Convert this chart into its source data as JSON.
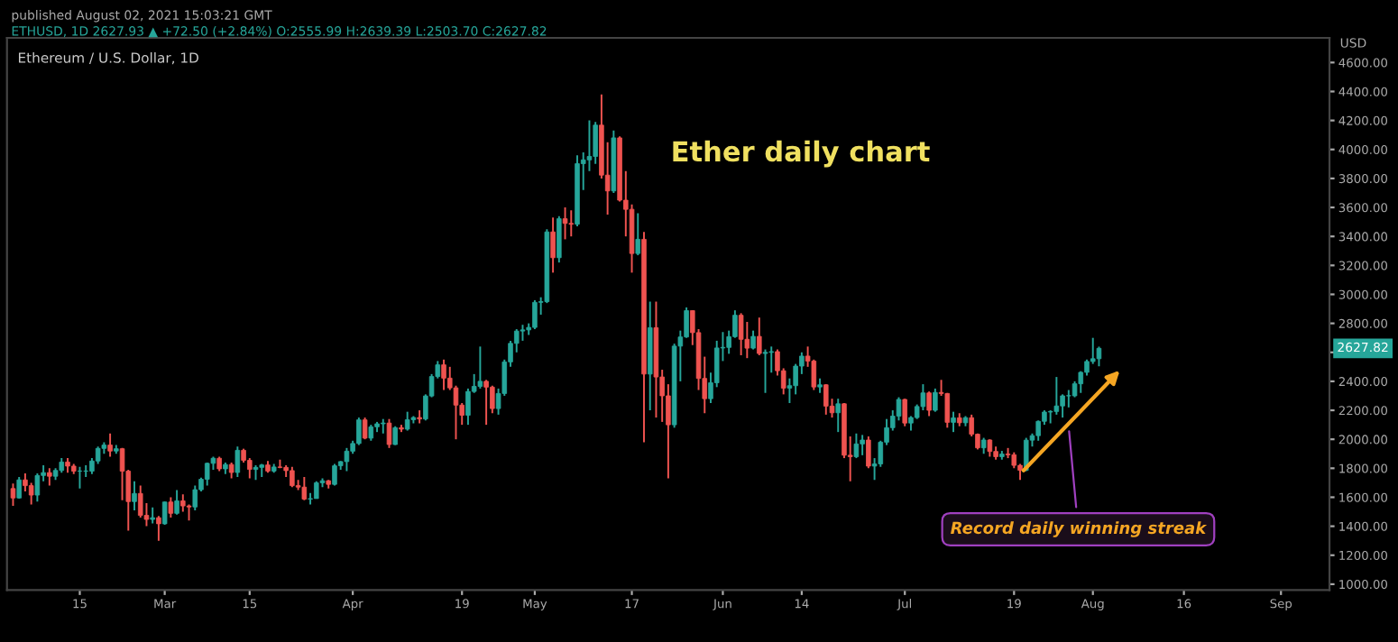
{
  "chart_data": {
    "type": "candlestick",
    "title": "Ethereum / U.S. Dollar, 1D",
    "subtitle": "published August 02, 2021 15:03:21 GMT",
    "ylabel": "USD",
    "annotations": [
      "ETHUSD, 1D 2627.93 ▲ +72.50 (+2.84%) O:2555.99 H:2639.39 L:2503.70 C:2627.82",
      "Ether daily chart",
      "Record daily winning streak",
      "2627.82"
    ],
    "xlim": [
      "2021-02-03",
      "2021-09-09"
    ],
    "xticks": [
      {
        "value": "2021-02-15",
        "label": "15"
      },
      {
        "value": "2021-03-01",
        "label": "Mar"
      },
      {
        "value": "2021-03-15",
        "label": "15"
      },
      {
        "value": "2021-04-01",
        "label": "Apr"
      },
      {
        "value": "2021-04-19",
        "label": "19"
      },
      {
        "value": "2021-05-01",
        "label": "May"
      },
      {
        "value": "2021-05-17",
        "label": "17"
      },
      {
        "value": "2021-06-01",
        "label": "Jun"
      },
      {
        "value": "2021-06-14",
        "label": "14"
      },
      {
        "value": "2021-07-01",
        "label": "Jul"
      },
      {
        "value": "2021-07-19",
        "label": "19"
      },
      {
        "value": "2021-08-01",
        "label": "Aug"
      },
      {
        "value": "2021-08-16",
        "label": "16"
      },
      {
        "value": "2021-09-01",
        "label": "Sep"
      }
    ],
    "ylim": [
      960,
      4770
    ],
    "yticks": [
      {
        "value": 1000,
        "label": "1000.00"
      },
      {
        "value": 1200,
        "label": "1200.00"
      },
      {
        "value": 1400,
        "label": "1400.00"
      },
      {
        "value": 1600,
        "label": "1600.00"
      },
      {
        "value": 1800,
        "label": "1800.00"
      },
      {
        "value": 2000,
        "label": "2000.00"
      },
      {
        "value": 2200,
        "label": "2200.00"
      },
      {
        "value": 2400,
        "label": "2400.00"
      },
      {
        "value": 2600,
        "label": null
      },
      {
        "value": 2800,
        "label": "2800.00"
      },
      {
        "value": 3000,
        "label": "3000.00"
      },
      {
        "value": 3200,
        "label": "3200.00"
      },
      {
        "value": 3400,
        "label": "3400.00"
      },
      {
        "value": 3600,
        "label": "3600.00"
      },
      {
        "value": 3800,
        "label": "3800.00"
      },
      {
        "value": 4000,
        "label": "4000.00"
      },
      {
        "value": 4200,
        "label": "4200.00"
      },
      {
        "value": 4400,
        "label": "4400.00"
      },
      {
        "value": 4600,
        "label": "4600.00"
      }
    ],
    "x": [
      "2021-02-04",
      "2021-02-05",
      "2021-02-06",
      "2021-02-07",
      "2021-02-08",
      "2021-02-09",
      "2021-02-10",
      "2021-02-11",
      "2021-02-12",
      "2021-02-13",
      "2021-02-14",
      "2021-02-15",
      "2021-02-16",
      "2021-02-17",
      "2021-02-18",
      "2021-02-19",
      "2021-02-20",
      "2021-02-21",
      "2021-02-22",
      "2021-02-23",
      "2021-02-24",
      "2021-02-25",
      "2021-02-26",
      "2021-02-27",
      "2021-02-28",
      "2021-03-01",
      "2021-03-02",
      "2021-03-03",
      "2021-03-04",
      "2021-03-05",
      "2021-03-06",
      "2021-03-07",
      "2021-03-08",
      "2021-03-09",
      "2021-03-10",
      "2021-03-11",
      "2021-03-12",
      "2021-03-13",
      "2021-03-14",
      "2021-03-15",
      "2021-03-16",
      "2021-03-17",
      "2021-03-18",
      "2021-03-19",
      "2021-03-20",
      "2021-03-21",
      "2021-03-22",
      "2021-03-23",
      "2021-03-24",
      "2021-03-25",
      "2021-03-26",
      "2021-03-27",
      "2021-03-28",
      "2021-03-29",
      "2021-03-30",
      "2021-03-31",
      "2021-04-01",
      "2021-04-02",
      "2021-04-03",
      "2021-04-04",
      "2021-04-05",
      "2021-04-06",
      "2021-04-07",
      "2021-04-08",
      "2021-04-09",
      "2021-04-10",
      "2021-04-11",
      "2021-04-12",
      "2021-04-13",
      "2021-04-14",
      "2021-04-15",
      "2021-04-16",
      "2021-04-17",
      "2021-04-18",
      "2021-04-19",
      "2021-04-20",
      "2021-04-21",
      "2021-04-22",
      "2021-04-23",
      "2021-04-24",
      "2021-04-25",
      "2021-04-26",
      "2021-04-27",
      "2021-04-28",
      "2021-04-29",
      "2021-04-30",
      "2021-05-01",
      "2021-05-02",
      "2021-05-03",
      "2021-05-04",
      "2021-05-05",
      "2021-05-06",
      "2021-05-07",
      "2021-05-08",
      "2021-05-09",
      "2021-05-10",
      "2021-05-11",
      "2021-05-12",
      "2021-05-13",
      "2021-05-14",
      "2021-05-15",
      "2021-05-16",
      "2021-05-17",
      "2021-05-18",
      "2021-05-19",
      "2021-05-20",
      "2021-05-21",
      "2021-05-22",
      "2021-05-23",
      "2021-05-24",
      "2021-05-25",
      "2021-05-26",
      "2021-05-27",
      "2021-05-28",
      "2021-05-29",
      "2021-05-30",
      "2021-05-31",
      "2021-06-01",
      "2021-06-02",
      "2021-06-03",
      "2021-06-04",
      "2021-06-05",
      "2021-06-06",
      "2021-06-07",
      "2021-06-08",
      "2021-06-09",
      "2021-06-10",
      "2021-06-11",
      "2021-06-12",
      "2021-06-13",
      "2021-06-14",
      "2021-06-15",
      "2021-06-16",
      "2021-06-17",
      "2021-06-18",
      "2021-06-19",
      "2021-06-20",
      "2021-06-21",
      "2021-06-22",
      "2021-06-23",
      "2021-06-24",
      "2021-06-25",
      "2021-06-26",
      "2021-06-27",
      "2021-06-28",
      "2021-06-29",
      "2021-06-30",
      "2021-07-01",
      "2021-07-02",
      "2021-07-03",
      "2021-07-04",
      "2021-07-05",
      "2021-07-06",
      "2021-07-07",
      "2021-07-08",
      "2021-07-09",
      "2021-07-10",
      "2021-07-11",
      "2021-07-12",
      "2021-07-13",
      "2021-07-14",
      "2021-07-15",
      "2021-07-16",
      "2021-07-17",
      "2021-07-18",
      "2021-07-19",
      "2021-07-20",
      "2021-07-21",
      "2021-07-22",
      "2021-07-23",
      "2021-07-24",
      "2021-07-25",
      "2021-07-26",
      "2021-07-27",
      "2021-07-28",
      "2021-07-29",
      "2021-07-30",
      "2021-07-31",
      "2021-08-01",
      "2021-08-02"
    ],
    "ohlc": [
      [
        1660,
        1695,
        1540,
        1595
      ],
      [
        1595,
        1740,
        1590,
        1720
      ],
      [
        1720,
        1765,
        1640,
        1680
      ],
      [
        1680,
        1700,
        1550,
        1615
      ],
      [
        1615,
        1765,
        1570,
        1750
      ],
      [
        1750,
        1820,
        1710,
        1770
      ],
      [
        1770,
        1800,
        1680,
        1745
      ],
      [
        1745,
        1800,
        1720,
        1785
      ],
      [
        1785,
        1870,
        1770,
        1843
      ],
      [
        1843,
        1870,
        1770,
        1815
      ],
      [
        1815,
        1830,
        1760,
        1780
      ],
      [
        1780,
        1810,
        1660,
        1780
      ],
      [
        1780,
        1820,
        1740,
        1780
      ],
      [
        1780,
        1870,
        1760,
        1850
      ],
      [
        1850,
        1950,
        1830,
        1937
      ],
      [
        1937,
        1980,
        1900,
        1960
      ],
      [
        1960,
        2040,
        1880,
        1919
      ],
      [
        1919,
        1960,
        1900,
        1935
      ],
      [
        1935,
        1940,
        1580,
        1780
      ],
      [
        1780,
        1790,
        1370,
        1570
      ],
      [
        1570,
        1710,
        1510,
        1626
      ],
      [
        1626,
        1680,
        1460,
        1475
      ],
      [
        1475,
        1560,
        1400,
        1447
      ],
      [
        1447,
        1530,
        1420,
        1459
      ],
      [
        1459,
        1470,
        1300,
        1417
      ],
      [
        1417,
        1570,
        1410,
        1567
      ],
      [
        1567,
        1600,
        1460,
        1489
      ],
      [
        1489,
        1650,
        1480,
        1575
      ],
      [
        1575,
        1620,
        1500,
        1540
      ],
      [
        1540,
        1550,
        1440,
        1533
      ],
      [
        1533,
        1680,
        1510,
        1652
      ],
      [
        1652,
        1735,
        1640,
        1724
      ],
      [
        1724,
        1840,
        1680,
        1834
      ],
      [
        1834,
        1880,
        1790,
        1869
      ],
      [
        1869,
        1880,
        1780,
        1796
      ],
      [
        1796,
        1840,
        1760,
        1826
      ],
      [
        1826,
        1840,
        1730,
        1771
      ],
      [
        1771,
        1950,
        1740,
        1924
      ],
      [
        1924,
        1935,
        1840,
        1855
      ],
      [
        1855,
        1870,
        1730,
        1792
      ],
      [
        1792,
        1820,
        1720,
        1806
      ],
      [
        1806,
        1830,
        1740,
        1823
      ],
      [
        1823,
        1850,
        1770,
        1781
      ],
      [
        1781,
        1830,
        1770,
        1809
      ],
      [
        1809,
        1860,
        1800,
        1806
      ],
      [
        1806,
        1820,
        1740,
        1784
      ],
      [
        1784,
        1810,
        1670,
        1680
      ],
      [
        1680,
        1720,
        1650,
        1670
      ],
      [
        1670,
        1740,
        1580,
        1587
      ],
      [
        1587,
        1630,
        1550,
        1591
      ],
      [
        1591,
        1710,
        1590,
        1700
      ],
      [
        1700,
        1730,
        1670,
        1714
      ],
      [
        1714,
        1720,
        1660,
        1689
      ],
      [
        1689,
        1830,
        1680,
        1817
      ],
      [
        1817,
        1850,
        1790,
        1846
      ],
      [
        1846,
        1940,
        1780,
        1918
      ],
      [
        1918,
        1990,
        1900,
        1971
      ],
      [
        1971,
        2150,
        1960,
        2134
      ],
      [
        2134,
        2150,
        2000,
        2008
      ],
      [
        2008,
        2100,
        1990,
        2086
      ],
      [
        2086,
        2120,
        2050,
        2107
      ],
      [
        2107,
        2140,
        2040,
        2112
      ],
      [
        2112,
        2140,
        1940,
        1964
      ],
      [
        1964,
        2090,
        1960,
        2080
      ],
      [
        2080,
        2100,
        2050,
        2070
      ],
      [
        2070,
        2190,
        2060,
        2135
      ],
      [
        2135,
        2160,
        2110,
        2150
      ],
      [
        2150,
        2200,
        2110,
        2140
      ],
      [
        2140,
        2310,
        2130,
        2299
      ],
      [
        2299,
        2450,
        2290,
        2433
      ],
      [
        2433,
        2540,
        2420,
        2514
      ],
      [
        2514,
        2550,
        2340,
        2422
      ],
      [
        2422,
        2500,
        2340,
        2355
      ],
      [
        2355,
        2370,
        2000,
        2236
      ],
      [
        2236,
        2250,
        2100,
        2166
      ],
      [
        2166,
        2350,
        2100,
        2330
      ],
      [
        2330,
        2450,
        2320,
        2365
      ],
      [
        2365,
        2640,
        2350,
        2400
      ],
      [
        2400,
        2410,
        2100,
        2360
      ],
      [
        2360,
        2370,
        2180,
        2212
      ],
      [
        2212,
        2350,
        2170,
        2316
      ],
      [
        2316,
        2550,
        2300,
        2534
      ],
      [
        2534,
        2680,
        2500,
        2662
      ],
      [
        2662,
        2760,
        2600,
        2747
      ],
      [
        2747,
        2790,
        2680,
        2755
      ],
      [
        2755,
        2800,
        2720,
        2772
      ],
      [
        2772,
        2960,
        2760,
        2945
      ],
      [
        2945,
        2980,
        2860,
        2950
      ],
      [
        2950,
        3450,
        2940,
        3431
      ],
      [
        3431,
        3530,
        3150,
        3253
      ],
      [
        3253,
        3540,
        3220,
        3522
      ],
      [
        3522,
        3600,
        3380,
        3490
      ],
      [
        3490,
        3580,
        3400,
        3484
      ],
      [
        3484,
        3960,
        3470,
        3902
      ],
      [
        3902,
        3980,
        3720,
        3928
      ],
      [
        3928,
        4200,
        3850,
        3952
      ],
      [
        3952,
        4190,
        3900,
        4168
      ],
      [
        4168,
        4380,
        3800,
        3823
      ],
      [
        3823,
        4050,
        3550,
        3714
      ],
      [
        3714,
        4130,
        3700,
        4080
      ],
      [
        4080,
        4090,
        3640,
        3650
      ],
      [
        3650,
        3850,
        3400,
        3587
      ],
      [
        3587,
        3620,
        3150,
        3282
      ],
      [
        3282,
        3560,
        3270,
        3380
      ],
      [
        3380,
        3430,
        1980,
        2450
      ],
      [
        2450,
        2950,
        2200,
        2770
      ],
      [
        2770,
        2950,
        2150,
        2430
      ],
      [
        2430,
        2480,
        2120,
        2300
      ],
      [
        2300,
        2380,
        1730,
        2100
      ],
      [
        2100,
        2660,
        2080,
        2643
      ],
      [
        2643,
        2750,
        2400,
        2706
      ],
      [
        2706,
        2910,
        2700,
        2888
      ],
      [
        2888,
        2890,
        2650,
        2736
      ],
      [
        2736,
        2760,
        2340,
        2420
      ],
      [
        2420,
        2570,
        2180,
        2280
      ],
      [
        2280,
        2460,
        2250,
        2390
      ],
      [
        2390,
        2680,
        2360,
        2630
      ],
      [
        2630,
        2740,
        2540,
        2634
      ],
      [
        2634,
        2750,
        2590,
        2708
      ],
      [
        2708,
        2890,
        2700,
        2856
      ],
      [
        2856,
        2870,
        2580,
        2690
      ],
      [
        2690,
        2810,
        2560,
        2629
      ],
      [
        2629,
        2750,
        2620,
        2710
      ],
      [
        2710,
        2840,
        2580,
        2592
      ],
      [
        2592,
        2620,
        2320,
        2600
      ],
      [
        2600,
        2640,
        2460,
        2605
      ],
      [
        2605,
        2620,
        2440,
        2473
      ],
      [
        2473,
        2490,
        2310,
        2353
      ],
      [
        2353,
        2420,
        2250,
        2370
      ],
      [
        2370,
        2520,
        2310,
        2505
      ],
      [
        2505,
        2600,
        2450,
        2574
      ],
      [
        2574,
        2640,
        2500,
        2540
      ],
      [
        2540,
        2550,
        2340,
        2361
      ],
      [
        2361,
        2420,
        2320,
        2376
      ],
      [
        2376,
        2380,
        2170,
        2229
      ],
      [
        2229,
        2280,
        2150,
        2183
      ],
      [
        2183,
        2280,
        2050,
        2245
      ],
      [
        2245,
        2250,
        1870,
        1890
      ],
      [
        1890,
        2020,
        1710,
        1880
      ],
      [
        1880,
        2040,
        1870,
        1968
      ],
      [
        1968,
        2030,
        1890,
        1995
      ],
      [
        1995,
        2020,
        1800,
        1815
      ],
      [
        1815,
        1870,
        1720,
        1830
      ],
      [
        1830,
        1990,
        1810,
        1980
      ],
      [
        1980,
        2140,
        1960,
        2080
      ],
      [
        2080,
        2200,
        2060,
        2160
      ],
      [
        2160,
        2290,
        2130,
        2275
      ],
      [
        2275,
        2280,
        2090,
        2112
      ],
      [
        2112,
        2160,
        2060,
        2150
      ],
      [
        2150,
        2240,
        2140,
        2226
      ],
      [
        2226,
        2380,
        2200,
        2320
      ],
      [
        2320,
        2330,
        2160,
        2200
      ],
      [
        2200,
        2350,
        2190,
        2323
      ],
      [
        2323,
        2410,
        2300,
        2316
      ],
      [
        2316,
        2320,
        2080,
        2117
      ],
      [
        2117,
        2190,
        2050,
        2148
      ],
      [
        2148,
        2180,
        2090,
        2114
      ],
      [
        2114,
        2160,
        2090,
        2149
      ],
      [
        2149,
        2170,
        2020,
        2035
      ],
      [
        2035,
        2040,
        1930,
        1941
      ],
      [
        1941,
        2010,
        1900,
        1995
      ],
      [
        1995,
        2000,
        1880,
        1916
      ],
      [
        1916,
        1950,
        1860,
        1880
      ],
      [
        1880,
        1920,
        1860,
        1898
      ],
      [
        1898,
        1940,
        1870,
        1893
      ],
      [
        1893,
        1910,
        1800,
        1820
      ],
      [
        1820,
        1830,
        1720,
        1786
      ],
      [
        1786,
        2010,
        1780,
        1994
      ],
      [
        1994,
        2040,
        1950,
        2025
      ],
      [
        2025,
        2130,
        1990,
        2124
      ],
      [
        2124,
        2200,
        2100,
        2188
      ],
      [
        2188,
        2200,
        2110,
        2192
      ],
      [
        2192,
        2430,
        2170,
        2230
      ],
      [
        2230,
        2310,
        2150,
        2300
      ],
      [
        2300,
        2340,
        2220,
        2300
      ],
      [
        2300,
        2400,
        2290,
        2383
      ],
      [
        2383,
        2470,
        2320,
        2462
      ],
      [
        2462,
        2550,
        2440,
        2537
      ],
      [
        2537,
        2700,
        2520,
        2556
      ],
      [
        2555.99,
        2639.39,
        2503.7,
        2627.82
      ]
    ]
  }
}
